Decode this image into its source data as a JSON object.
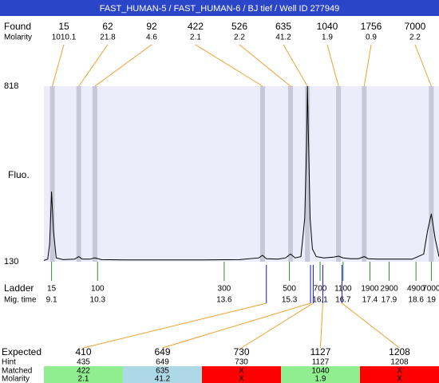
{
  "header": {
    "title": "FAST_HUMAN-5 / FAST_HUMAN-6 / BJ tief / Well ID 277949"
  },
  "found": {
    "label": "Found",
    "molarity_label": "Molarity",
    "sizes": [
      15,
      62,
      92,
      422,
      526,
      635,
      1040,
      1756,
      7000
    ],
    "molarity": [
      1010.1,
      21.8,
      4.6,
      2.1,
      2.2,
      41.2,
      1.9,
      0.9,
      2.2
    ],
    "times": [
      9.12,
      9.81,
      10.23,
      14.6,
      15.33,
      15.77,
      16.58,
      17.25,
      19.0
    ]
  },
  "chart_data": {
    "type": "line",
    "y_label": "Fluo.",
    "color": "#000000",
    "x": [
      8.9,
      9.0,
      9.05,
      9.1,
      9.15,
      9.22,
      9.4,
      9.7,
      9.81,
      9.9,
      10.1,
      10.23,
      10.4,
      11,
      12,
      13,
      14,
      14.5,
      14.6,
      14.7,
      15.0,
      15.2,
      15.33,
      15.45,
      15.6,
      15.7,
      15.75,
      15.77,
      15.8,
      15.84,
      15.9,
      16.0,
      16.2,
      16.45,
      16.58,
      16.7,
      16.9,
      17.1,
      17.25,
      17.35,
      17.6,
      18.0,
      18.5,
      18.8,
      18.9,
      19.0,
      19.1,
      19.2
    ],
    "values": [
      135,
      140,
      200,
      405,
      250,
      145,
      138,
      140,
      150,
      140,
      140,
      145,
      138,
      137,
      137,
      137,
      138,
      145,
      155,
      142,
      140,
      145,
      160,
      145,
      150,
      300,
      600,
      818,
      600,
      300,
      180,
      150,
      145,
      148,
      152,
      145,
      142,
      142,
      150,
      142,
      140,
      140,
      140,
      160,
      250,
      318,
      220,
      150
    ],
    "xlim": [
      8.9,
      19.2
    ],
    "ylim": [
      130,
      818
    ],
    "yticks": [
      130,
      818
    ]
  },
  "ladder": {
    "label": "Ladder",
    "time_label": "Mig. time",
    "sizes": [
      15,
      100,
      300,
      500,
      700,
      1100,
      1900,
      2900,
      4900,
      7000
    ],
    "times": [
      9.1,
      10.3,
      13.6,
      15.3,
      16.1,
      16.7,
      17.4,
      17.9,
      18.6,
      19
    ]
  },
  "expected": {
    "label": "Expected",
    "hint_label": "Hint",
    "matched_label": "Matched",
    "molarity_label": "Molarity",
    "values": [
      410,
      649,
      730,
      1127,
      1208
    ],
    "hints": [
      435,
      649,
      730,
      1127,
      1208
    ],
    "matched": [
      422,
      635,
      "X",
      1040,
      "X"
    ],
    "molarity": [
      2.1,
      41.2,
      "X",
      1.9,
      "X"
    ],
    "times": [
      14.7,
      15.85,
      15.92,
      16.17,
      16.67
    ],
    "colors": [
      "#90ee90",
      "#add8e6",
      "#ff0000",
      "#90ee90",
      "#ff0000"
    ]
  }
}
